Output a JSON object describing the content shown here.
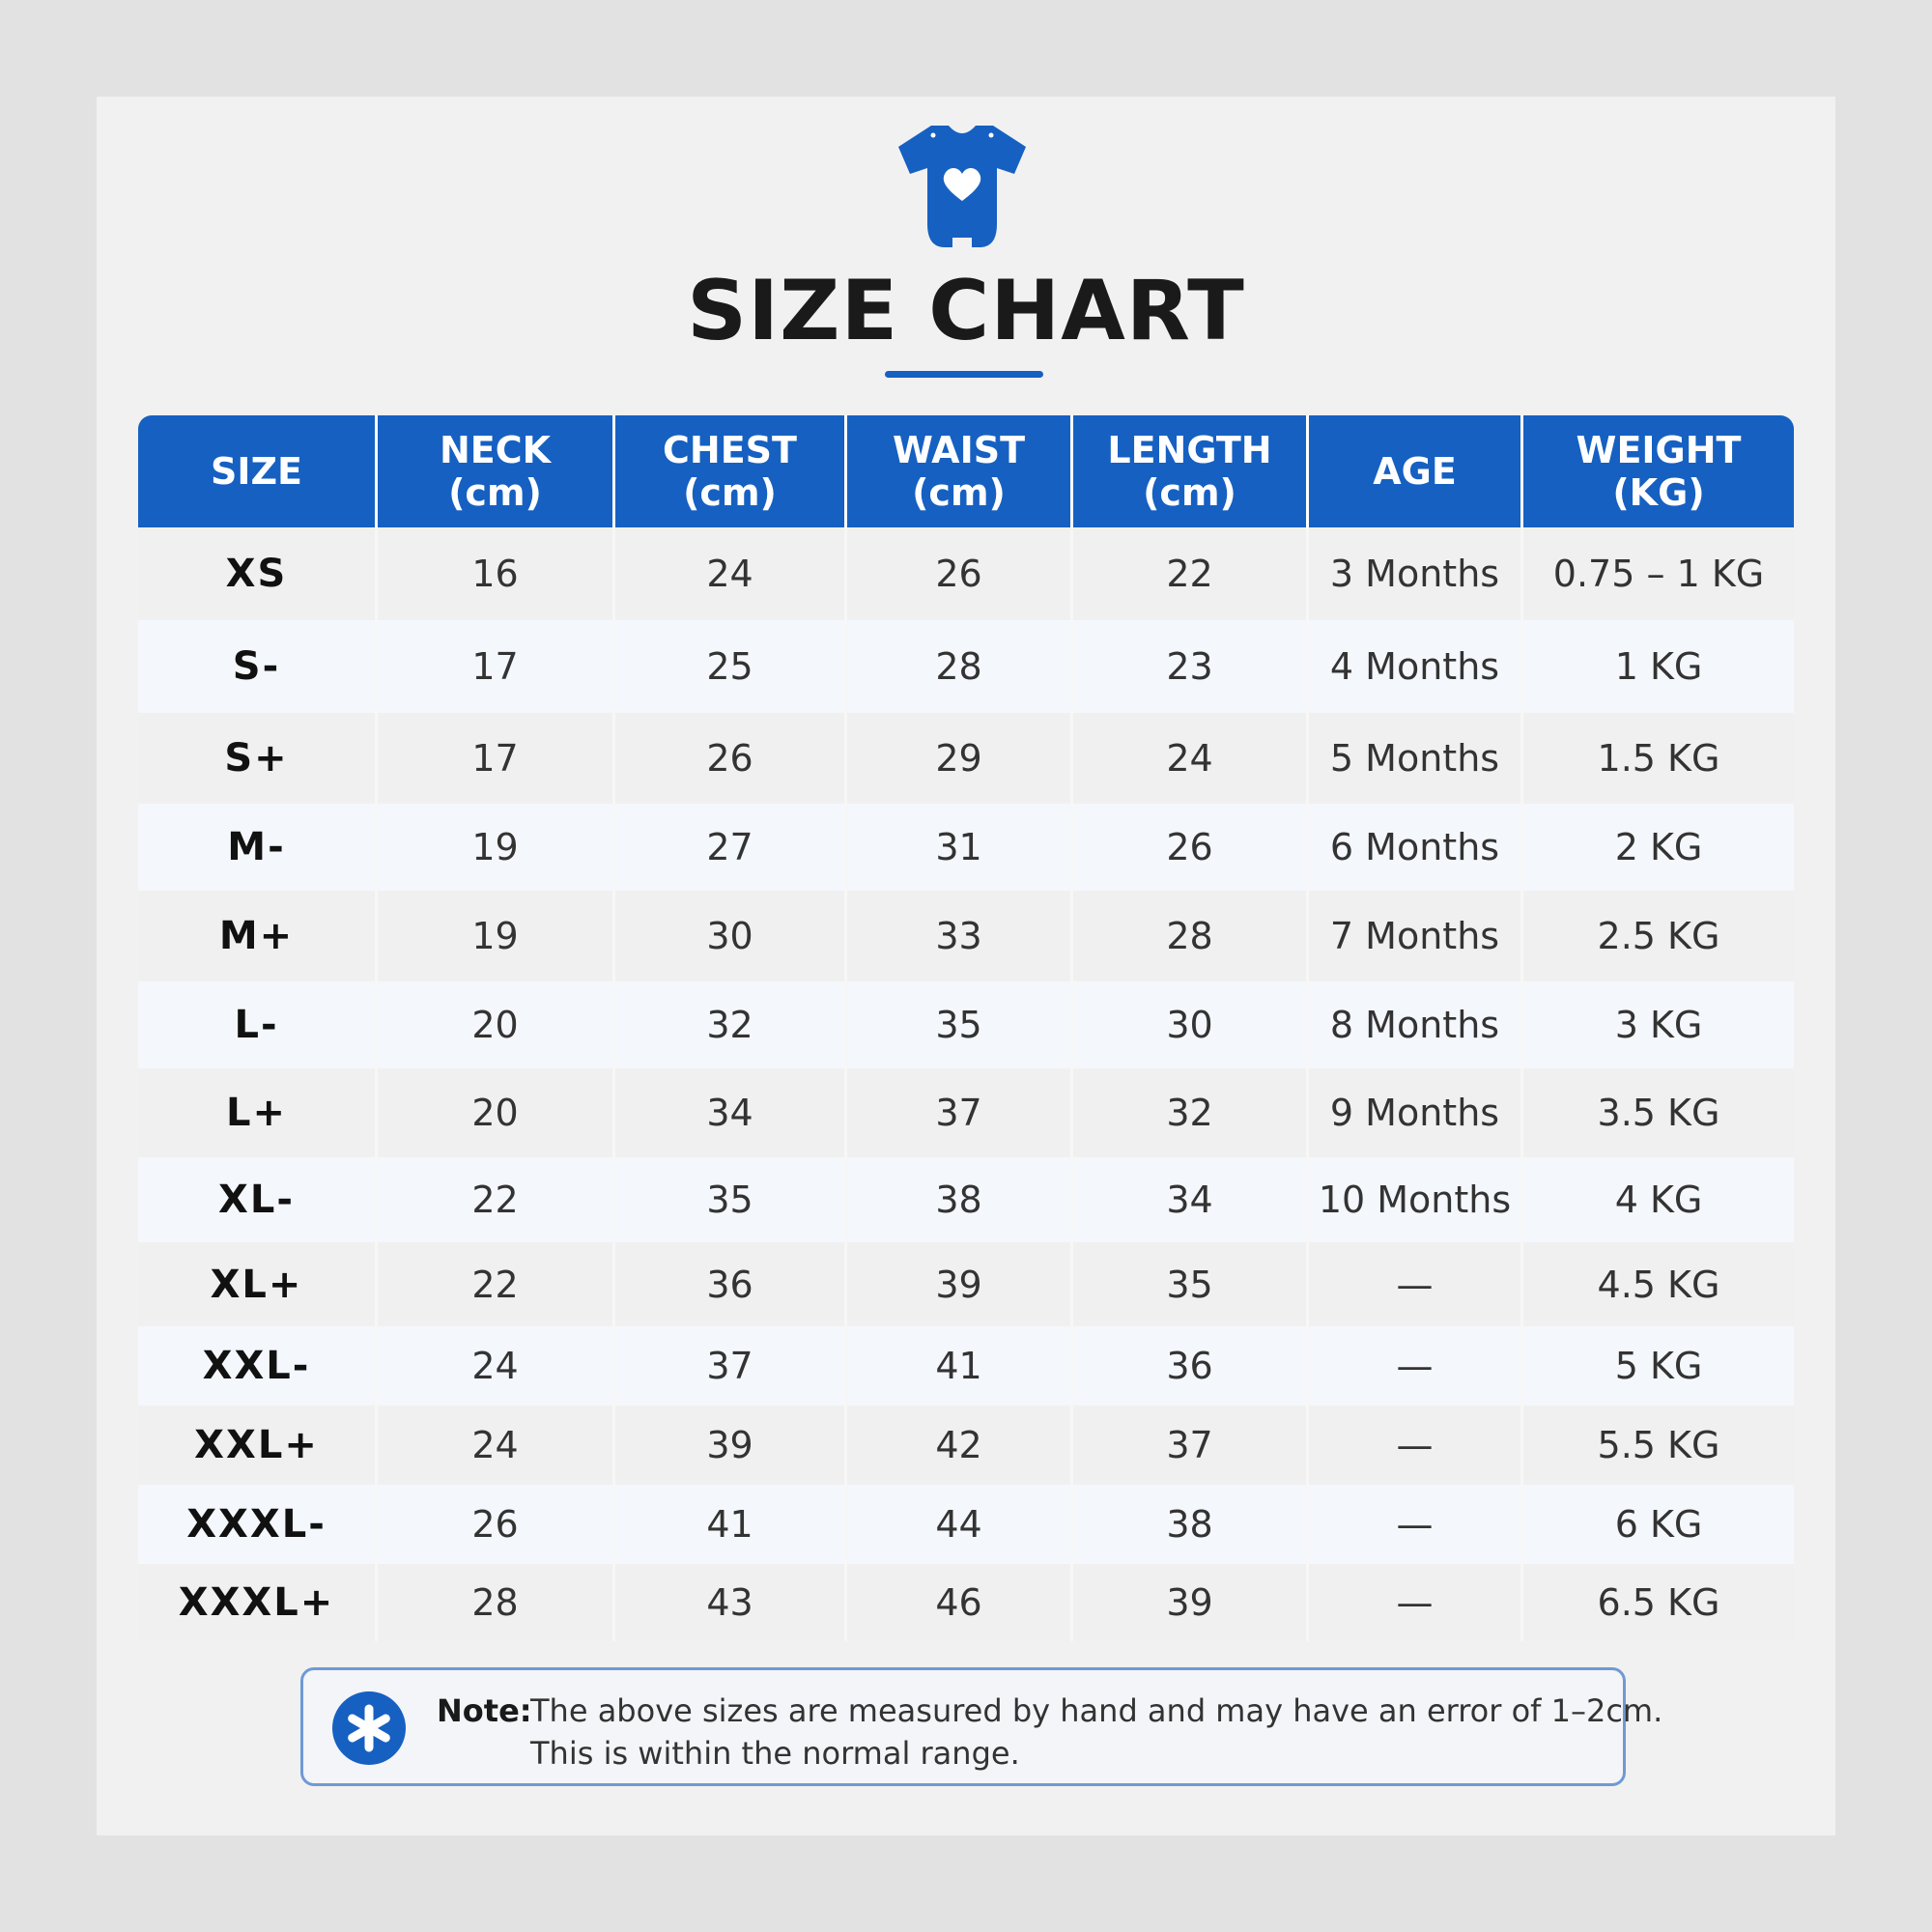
{
  "title": "SIZE CHART",
  "logo_icon": "baby-onesie-heart-icon",
  "accent_color": "#1660c2",
  "table": {
    "headers": [
      {
        "line1": "SIZE",
        "line2": ""
      },
      {
        "line1": "NECK",
        "line2": "(cm)"
      },
      {
        "line1": "CHEST",
        "line2": "(cm)"
      },
      {
        "line1": "WAIST",
        "line2": "(cm)"
      },
      {
        "line1": "LENGTH",
        "line2": "(cm)"
      },
      {
        "line1": "AGE",
        "line2": ""
      },
      {
        "line1": "WEIGHT",
        "line2": "(KG)"
      }
    ],
    "rows": [
      [
        "XS",
        "16",
        "24",
        "26",
        "22",
        "3 Months",
        "0.75 – 1 KG"
      ],
      [
        "S-",
        "17",
        "25",
        "28",
        "23",
        "4 Months",
        "1 KG"
      ],
      [
        "S+",
        "17",
        "26",
        "29",
        "24",
        "5 Months",
        "1.5 KG"
      ],
      [
        "M-",
        "19",
        "27",
        "31",
        "26",
        "6 Months",
        "2 KG"
      ],
      [
        "M+",
        "19",
        "30",
        "33",
        "28",
        "7 Months",
        "2.5 KG"
      ],
      [
        "L-",
        "20",
        "32",
        "35",
        "30",
        "8 Months",
        "3 KG"
      ],
      [
        "L+",
        "20",
        "34",
        "37",
        "32",
        "9 Months",
        "3.5 KG"
      ],
      [
        "XL-",
        "22",
        "35",
        "38",
        "34",
        "10 Months",
        "4 KG"
      ],
      [
        "XL+",
        "22",
        "36",
        "39",
        "35",
        "—",
        "4.5 KG"
      ],
      [
        "XXL-",
        "24",
        "37",
        "41",
        "36",
        "—",
        "5 KG"
      ],
      [
        "XXL+",
        "24",
        "39",
        "42",
        "37",
        "—",
        "5.5 KG"
      ],
      [
        "XXXL-",
        "26",
        "41",
        "44",
        "38",
        "—",
        "6 KG"
      ],
      [
        "XXXL+",
        "28",
        "43",
        "46",
        "39",
        "—",
        "6.5 KG"
      ]
    ]
  },
  "note": {
    "icon": "asterisk-icon",
    "label": "Note:",
    "line1": "The above sizes are measured by hand and may have an error of 1–2cm.",
    "line2": "This is within the normal range."
  }
}
